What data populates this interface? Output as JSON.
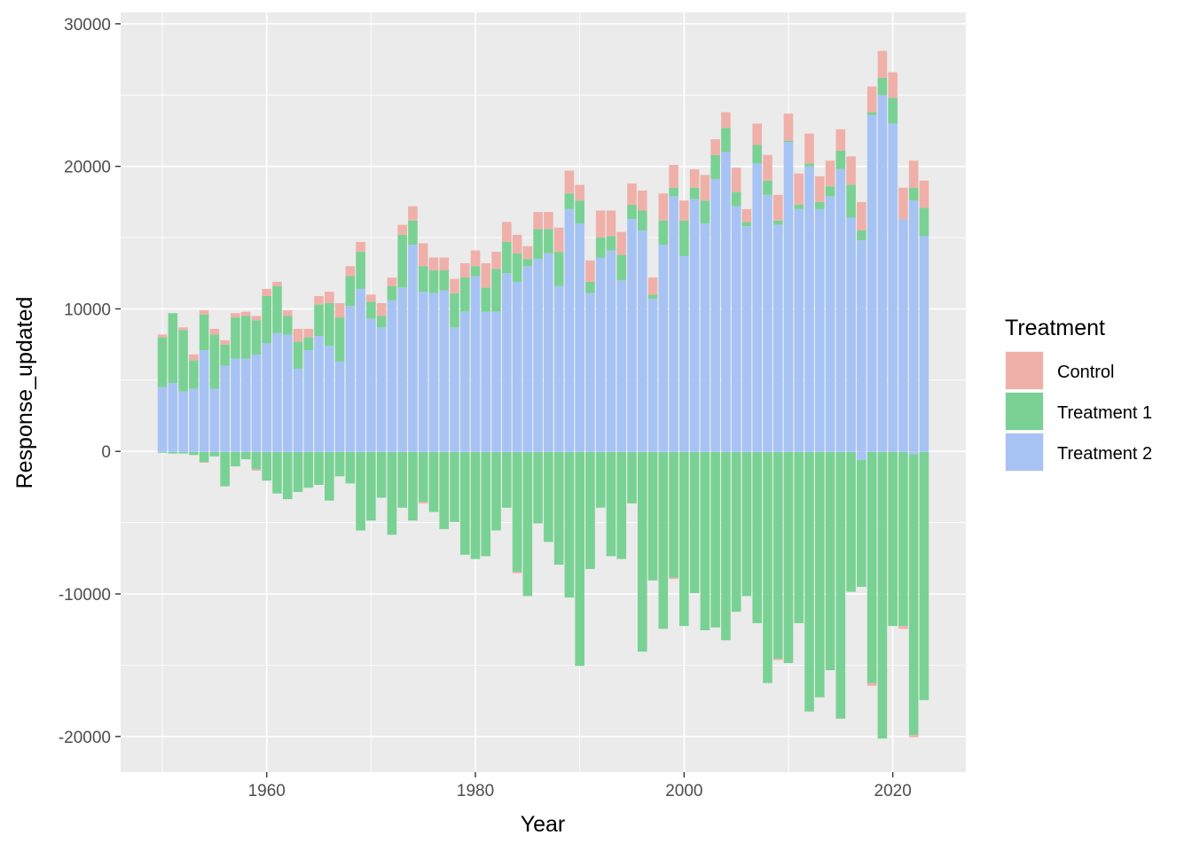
{
  "chart_data": {
    "type": "bar",
    "stacked": true,
    "diverging": true,
    "xlabel": "Year",
    "ylabel": "Response_updated",
    "xlim": [
      1946,
      2027
    ],
    "ylim": [
      -22500,
      30800
    ],
    "x_ticks": [
      1960,
      1980,
      2000,
      2020
    ],
    "y_ticks": [
      -20000,
      -10000,
      0,
      10000,
      20000,
      30000
    ],
    "grid": true,
    "legend": {
      "title": "Treatment",
      "placement": "right",
      "entries": [
        "Control",
        "Treatment 1",
        "Treatment 2"
      ]
    },
    "colors": {
      "Control": "#f0b0aa",
      "Treatment 1": "#79d294",
      "Treatment 2": "#a7c3f4",
      "panel": "#ebebeb",
      "grid": "#ffffff"
    },
    "x": [
      1950,
      1951,
      1952,
      1953,
      1954,
      1955,
      1956,
      1957,
      1958,
      1959,
      1960,
      1961,
      1962,
      1963,
      1964,
      1965,
      1966,
      1967,
      1968,
      1969,
      1970,
      1971,
      1972,
      1973,
      1974,
      1975,
      1976,
      1977,
      1978,
      1979,
      1980,
      1981,
      1982,
      1983,
      1984,
      1985,
      1986,
      1987,
      1988,
      1989,
      1990,
      1991,
      1992,
      1993,
      1994,
      1995,
      1996,
      1997,
      1998,
      1999,
      2000,
      2001,
      2002,
      2003,
      2004,
      2005,
      2006,
      2007,
      2008,
      2009,
      2010,
      2011,
      2012,
      2013,
      2014,
      2015,
      2016,
      2017,
      2018,
      2019,
      2020,
      2021,
      2022,
      2023
    ],
    "series": [
      {
        "name": "Treatment 2",
        "positive": [
          4500,
          4800,
          4200,
          4400,
          7100,
          4400,
          6000,
          6500,
          6500,
          6800,
          7600,
          8300,
          8200,
          5800,
          7100,
          8100,
          7400,
          6300,
          10200,
          11400,
          9300,
          8700,
          10600,
          11500,
          14500,
          11200,
          11100,
          11300,
          8700,
          9800,
          12300,
          9800,
          9800,
          12500,
          11900,
          13000,
          13500,
          13900,
          11600,
          17000,
          16000,
          11100,
          13600,
          14100,
          12000,
          16300,
          15500,
          10700,
          14500,
          17900,
          13700,
          17700,
          16000,
          19100,
          21000,
          17200,
          15800,
          20200,
          18000,
          15900,
          21700,
          17000,
          20000,
          17000,
          17900,
          19800,
          16400,
          14800,
          23600,
          25000,
          23000,
          16300,
          17600,
          15100
        ],
        "negative": [
          -50,
          -50,
          -50,
          -50,
          -50,
          -50,
          -50,
          -50,
          -50,
          -50,
          -50,
          -50,
          -50,
          -50,
          -50,
          -50,
          -50,
          -50,
          -50,
          -50,
          -50,
          -50,
          -50,
          -50,
          -50,
          -50,
          -50,
          -50,
          -50,
          -50,
          -50,
          -50,
          -50,
          -50,
          -50,
          -50,
          -50,
          -50,
          -50,
          -50,
          -50,
          -50,
          -50,
          -50,
          -50,
          -50,
          -50,
          -50,
          -50,
          -50,
          -50,
          -50,
          -50,
          -50,
          -50,
          -50,
          -50,
          -50,
          -50,
          -50,
          -50,
          -50,
          -50,
          -50,
          -50,
          -50,
          -50,
          -600,
          -50,
          -50,
          -50,
          -50,
          -200,
          -50
        ]
      },
      {
        "name": "Treatment 1",
        "positive": [
          3500,
          4900,
          4300,
          2000,
          2500,
          3800,
          1500,
          2900,
          3000,
          2400,
          3300,
          3300,
          1300,
          1900,
          900,
          2200,
          3000,
          3100,
          2100,
          2600,
          1200,
          800,
          1000,
          3700,
          1700,
          1800,
          1600,
          1400,
          2400,
          2400,
          700,
          1700,
          3000,
          2200,
          2000,
          500,
          2100,
          1700,
          2400,
          1100,
          1600,
          800,
          1400,
          1000,
          1800,
          1000,
          1400,
          300,
          1700,
          600,
          2500,
          800,
          1600,
          1700,
          1700,
          1000,
          300,
          1300,
          1000,
          300,
          100,
          300,
          200,
          500,
          700,
          1300,
          2300,
          700,
          200,
          1200,
          1800,
          0,
          900,
          2000
        ],
        "negative": [
          -50,
          -100,
          -100,
          -200,
          -700,
          -300,
          -2400,
          -1000,
          -500,
          -1200,
          -2000,
          -2900,
          -3300,
          -2800,
          -2500,
          -2300,
          -3400,
          -1700,
          -2200,
          -5500,
          -4800,
          -3200,
          -5800,
          -3900,
          -4800,
          -3500,
          -4200,
          -5400,
          -4900,
          -7200,
          -7500,
          -7300,
          -5500,
          -3900,
          -8400,
          -10100,
          -5000,
          -6300,
          -7900,
          -10200,
          -15000,
          -8200,
          -3900,
          -7300,
          -7500,
          -3600,
          -14000,
          -9000,
          -12400,
          -8800,
          -12200,
          -9900,
          -12500,
          -12300,
          -13200,
          -11200,
          -10100,
          -12000,
          -16200,
          -14500,
          -14800,
          -12000,
          -18200,
          -17200,
          -15300,
          -18700,
          -9800,
          -8900,
          -16200,
          -20100,
          -12200,
          -12200,
          -19700,
          -17400
        ]
      },
      {
        "name": "Control",
        "positive": [
          200,
          0,
          200,
          400,
          300,
          400,
          300,
          300,
          300,
          300,
          500,
          300,
          400,
          900,
          600,
          600,
          800,
          1000,
          700,
          700,
          500,
          900,
          600,
          700,
          1000,
          1600,
          900,
          900,
          1000,
          1000,
          1100,
          1700,
          1200,
          1400,
          1300,
          900,
          1200,
          1200,
          1700,
          1600,
          1100,
          1500,
          1900,
          1800,
          1600,
          1500,
          1400,
          1200,
          1900,
          1600,
          1400,
          1300,
          1800,
          1100,
          1100,
          1700,
          900,
          1500,
          1800,
          1800,
          1900,
          2200,
          2100,
          1800,
          1800,
          1500,
          2000,
          2000,
          1800,
          1900,
          1800,
          2200,
          1900,
          1900
        ],
        "negative": [
          0,
          0,
          0,
          0,
          -50,
          0,
          0,
          0,
          0,
          -100,
          0,
          0,
          0,
          0,
          0,
          0,
          0,
          0,
          0,
          0,
          0,
          0,
          0,
          0,
          0,
          -100,
          0,
          0,
          0,
          0,
          0,
          0,
          0,
          0,
          -100,
          0,
          0,
          0,
          0,
          0,
          0,
          0,
          0,
          0,
          0,
          0,
          0,
          0,
          0,
          -100,
          0,
          0,
          0,
          0,
          0,
          0,
          0,
          0,
          0,
          -100,
          0,
          0,
          0,
          0,
          0,
          0,
          0,
          0,
          -200,
          0,
          0,
          -200,
          -150,
          0
        ]
      }
    ]
  }
}
